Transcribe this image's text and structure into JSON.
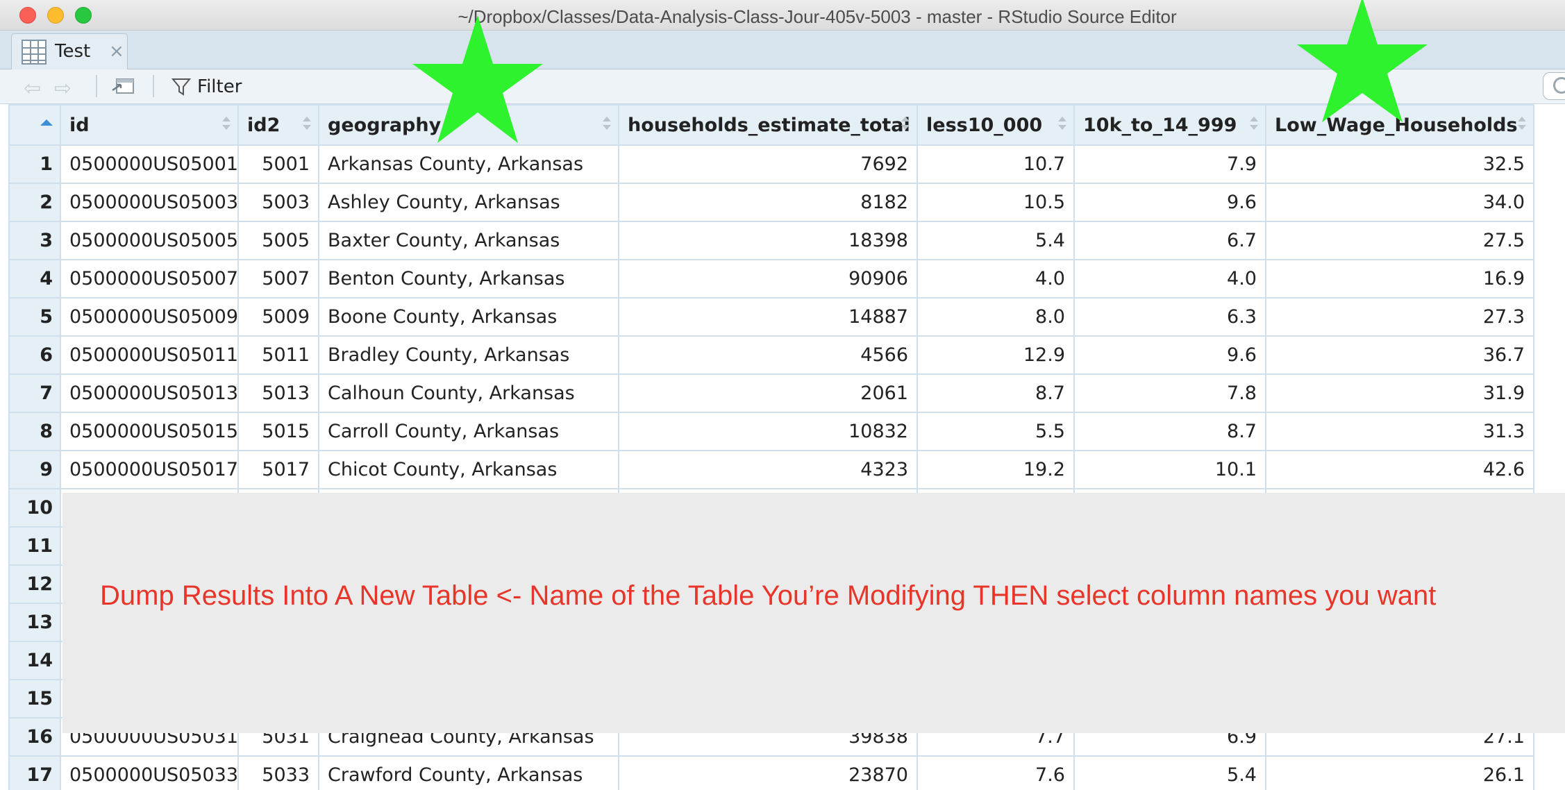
{
  "window": {
    "title": "~/Dropbox/Classes/Data-Analysis-Class-Jour-405v-5003 - master - RStudio Source Editor"
  },
  "tab": {
    "label": "Test",
    "close_glyph": "×"
  },
  "toolbar": {
    "back_glyph": "⇦",
    "forward_glyph": "⇨",
    "filter_label": "Filter"
  },
  "table": {
    "columns": [
      "id",
      "id2",
      "geography",
      "households_estimate_total",
      "less10_000",
      "10k_to_14_999",
      "Low_Wage_Households"
    ],
    "rows": [
      {
        "n": "1",
        "id": "0500000US05001",
        "id2": "5001",
        "geography": "Arkansas County, Arkansas",
        "hh": "7692",
        "less10": "10.7",
        "k10": "7.9",
        "low": "32.5"
      },
      {
        "n": "2",
        "id": "0500000US05003",
        "id2": "5003",
        "geography": "Ashley County, Arkansas",
        "hh": "8182",
        "less10": "10.5",
        "k10": "9.6",
        "low": "34.0"
      },
      {
        "n": "3",
        "id": "0500000US05005",
        "id2": "5005",
        "geography": "Baxter County, Arkansas",
        "hh": "18398",
        "less10": "5.4",
        "k10": "6.7",
        "low": "27.5"
      },
      {
        "n": "4",
        "id": "0500000US05007",
        "id2": "5007",
        "geography": "Benton County, Arkansas",
        "hh": "90906",
        "less10": "4.0",
        "k10": "4.0",
        "low": "16.9"
      },
      {
        "n": "5",
        "id": "0500000US05009",
        "id2": "5009",
        "geography": "Boone County, Arkansas",
        "hh": "14887",
        "less10": "8.0",
        "k10": "6.3",
        "low": "27.3"
      },
      {
        "n": "6",
        "id": "0500000US05011",
        "id2": "5011",
        "geography": "Bradley County, Arkansas",
        "hh": "4566",
        "less10": "12.9",
        "k10": "9.6",
        "low": "36.7"
      },
      {
        "n": "7",
        "id": "0500000US05013",
        "id2": "5013",
        "geography": "Calhoun County, Arkansas",
        "hh": "2061",
        "less10": "8.7",
        "k10": "7.8",
        "low": "31.9"
      },
      {
        "n": "8",
        "id": "0500000US05015",
        "id2": "5015",
        "geography": "Carroll County, Arkansas",
        "hh": "10832",
        "less10": "5.5",
        "k10": "8.7",
        "low": "31.3"
      },
      {
        "n": "9",
        "id": "0500000US05017",
        "id2": "5017",
        "geography": "Chicot County, Arkansas",
        "hh": "4323",
        "less10": "19.2",
        "k10": "10.1",
        "low": "42.6"
      },
      {
        "n": "10",
        "id": "",
        "id2": "",
        "geography": "",
        "hh": "",
        "less10": "",
        "k10": "",
        "low": ""
      },
      {
        "n": "11",
        "id": "",
        "id2": "",
        "geography": "",
        "hh": "",
        "less10": "",
        "k10": "",
        "low": ""
      },
      {
        "n": "12",
        "id": "",
        "id2": "",
        "geography": "",
        "hh": "",
        "less10": "",
        "k10": "",
        "low": ""
      },
      {
        "n": "13",
        "id": "",
        "id2": "",
        "geography": "",
        "hh": "",
        "less10": "",
        "k10": "",
        "low": ""
      },
      {
        "n": "14",
        "id": "",
        "id2": "",
        "geography": "",
        "hh": "",
        "less10": "",
        "k10": "",
        "low": ""
      },
      {
        "n": "15",
        "id": "",
        "id2": "",
        "geography": "",
        "hh": "",
        "less10": "",
        "k10": "",
        "low": ""
      },
      {
        "n": "16",
        "id": "0500000US05031",
        "id2": "5031",
        "geography": "Craighead County, Arkansas",
        "hh": "39838",
        "less10": "7.7",
        "k10": "6.9",
        "low": "27.1"
      },
      {
        "n": "17",
        "id": "0500000US05033",
        "id2": "5033",
        "geography": "Crawford County, Arkansas",
        "hh": "23870",
        "less10": "7.6",
        "k10": "5.4",
        "low": "26.1"
      }
    ]
  },
  "annotation": {
    "text": "Dump Results Into A New Table <- Name of the Table You’re Modifying THEN select column names you want",
    "text_color": "#e8352a",
    "star_color": "#2df22d"
  }
}
